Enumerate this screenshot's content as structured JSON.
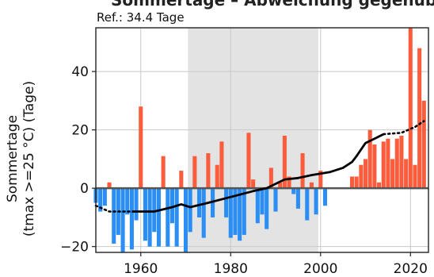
{
  "header": {
    "title_fragment": "Sommertage – Abweichung gegenüber der Referenz",
    "reference_label": "Ref.: 34.4 Tage"
  },
  "chart_data": {
    "type": "bar",
    "ylabel_line1": "Sommertage",
    "ylabel_line2": "(tmax >=25 °C) (Tage)",
    "xlim": [
      1950,
      2024
    ],
    "ylim": [
      -22,
      55
    ],
    "xticks": [
      "1960",
      "1980",
      "2000",
      "2020"
    ],
    "xtick_values": [
      1960,
      1980,
      2000,
      2020
    ],
    "yticks": [
      "−20",
      "0",
      "20",
      "40"
    ],
    "ytick_values": [
      -20,
      0,
      20,
      40
    ],
    "reference_period": [
      1970.5,
      1999.5
    ],
    "grid": true,
    "colors": {
      "positive": "#fb5c3c",
      "negative": "#2a8ef5",
      "reference_shade": "#e3e3e3",
      "trend": "#000000",
      "grid": "#c8c8c8"
    },
    "years": [
      1950,
      1951,
      1952,
      1953,
      1954,
      1955,
      1956,
      1957,
      1958,
      1959,
      1960,
      1961,
      1962,
      1963,
      1964,
      1965,
      1966,
      1967,
      1968,
      1969,
      1970,
      1971,
      1972,
      1973,
      1974,
      1975,
      1976,
      1977,
      1978,
      1979,
      1980,
      1981,
      1982,
      1983,
      1984,
      1985,
      1986,
      1987,
      1988,
      1989,
      1990,
      1991,
      1992,
      1993,
      1994,
      1995,
      1996,
      1997,
      1998,
      1999,
      2000,
      2001,
      2002,
      2003,
      2004,
      2005,
      2006,
      2007,
      2008,
      2009,
      2010,
      2011,
      2012,
      2013,
      2014,
      2015,
      2016,
      2017,
      2018,
      2019,
      2020,
      2021,
      2022,
      2023
    ],
    "values": [
      -5,
      -8,
      -6,
      2,
      -19,
      -16,
      -22,
      -9,
      -21,
      -11,
      28,
      -18,
      -20,
      -15,
      -20,
      11,
      -20,
      -12,
      -20,
      6,
      -22,
      -15,
      11,
      -10,
      -17,
      12,
      -10,
      8,
      16,
      -10,
      -17,
      -16,
      -18,
      -16,
      19,
      3,
      -12,
      -9,
      -14,
      7,
      -8,
      2,
      18,
      4,
      -2,
      -7,
      12,
      -11,
      2,
      -9,
      6,
      -6,
      0,
      0,
      0,
      0,
      0,
      4,
      4,
      8,
      10,
      20,
      15,
      2,
      16,
      17,
      10,
      17,
      18,
      10,
      55,
      8,
      48,
      30
    ],
    "trend": {
      "dotted_start": [
        [
          1950,
          -6
        ],
        [
          1953,
          -8
        ],
        [
          1958,
          -8
        ]
      ],
      "solid": [
        [
          1958,
          -8
        ],
        [
          1963,
          -8
        ],
        [
          1967,
          -6.5
        ],
        [
          1969,
          -5.5
        ],
        [
          1971,
          -6.5
        ],
        [
          1975,
          -5
        ],
        [
          1980,
          -3
        ],
        [
          1985,
          -1
        ],
        [
          1988,
          0
        ],
        [
          1990,
          1.5
        ],
        [
          1992,
          3
        ],
        [
          1995,
          3.5
        ],
        [
          1998,
          4.5
        ],
        [
          2000,
          5
        ],
        [
          2002,
          5.5
        ],
        [
          2005,
          7
        ],
        [
          2007,
          9
        ],
        [
          2008,
          11
        ],
        [
          2010,
          15.5
        ],
        [
          2012,
          17
        ],
        [
          2014,
          18.5
        ]
      ],
      "dotted_end": [
        [
          2014,
          18.5
        ],
        [
          2018,
          19
        ],
        [
          2021,
          21
        ],
        [
          2023,
          23
        ]
      ]
    }
  }
}
